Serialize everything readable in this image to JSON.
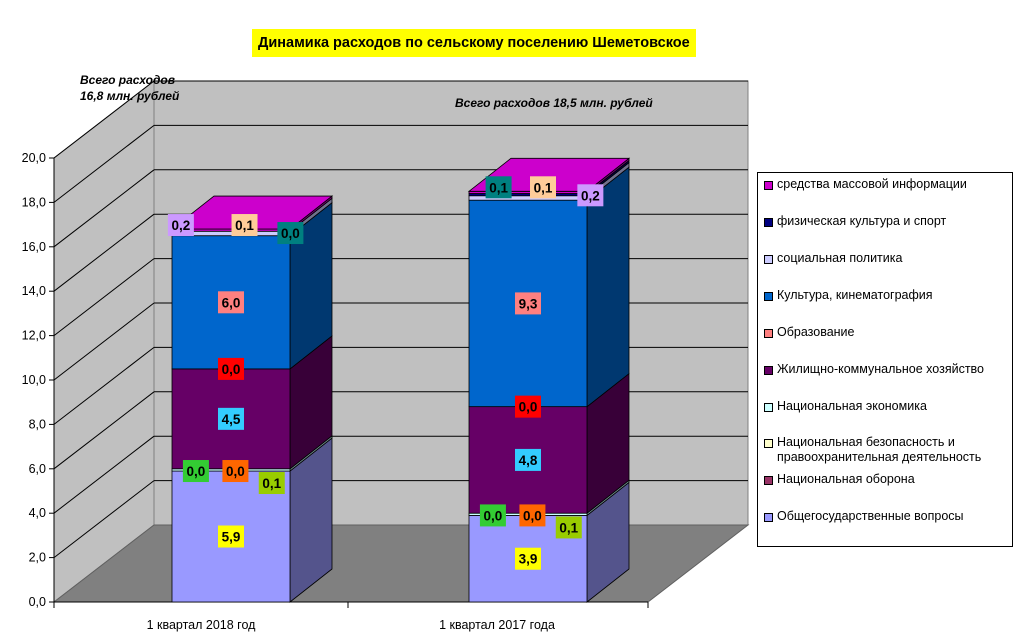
{
  "chart_data": {
    "type": "bar",
    "stacked": true,
    "three_d": true,
    "title": "Динамика расходов по сельскому поселению Шеметовское",
    "notes": [
      "Всего расходов 16,8 млн. рублей",
      "Всего расходов 18,5 млн. рублей"
    ],
    "categories": [
      "1 квартал 2018 год",
      "1 квартал 2017 года"
    ],
    "y_ticks": [
      "0,0",
      "2,0",
      "4,0",
      "6,0",
      "8,0",
      "10,0",
      "12,0",
      "14,0",
      "16,0",
      "18,0",
      "20,0"
    ],
    "ylim": [
      0,
      20
    ],
    "grid": true,
    "legend_position": "right",
    "series": [
      {
        "name": "Общегосударственные вопросы",
        "color": "#9999ff",
        "values": [
          5.9,
          3.9
        ],
        "labels": [
          "5,9",
          "3,9"
        ],
        "label_bg": "#ffff00"
      },
      {
        "name": "Национальная оборона",
        "color": "#993366",
        "values": [
          0.0,
          0.0
        ],
        "labels": [
          "0,0",
          "0,0"
        ],
        "label_bg": "#33cc33"
      },
      {
        "name": "Национальная безопасность и правоохранительная деятельность",
        "color": "#ffffcc",
        "values": [
          0.0,
          0.0
        ],
        "labels": [
          "0,0",
          "0,0"
        ],
        "label_bg": "#ff6600"
      },
      {
        "name": "Национальная экономика",
        "color": "#ccffff",
        "values": [
          0.1,
          0.1
        ],
        "labels": [
          "0,1",
          "0,1"
        ],
        "label_bg": "#99cc00"
      },
      {
        "name": "Жилищно-коммунальное хозяйство",
        "color": "#660066",
        "values": [
          4.5,
          4.8
        ],
        "labels": [
          "4,5",
          "4,8"
        ],
        "label_bg": "#33ccff"
      },
      {
        "name": "Образование",
        "color": "#ff8080",
        "values": [
          0.0,
          0.0
        ],
        "labels": [
          "0,0",
          "0,0"
        ],
        "label_bg": "#ff0000"
      },
      {
        "name": "Культура, кинематография",
        "color": "#0066cc",
        "values": [
          6.0,
          9.3
        ],
        "labels": [
          "6,0",
          "9,3"
        ],
        "label_bg": "#ff8080"
      },
      {
        "name": "социальная политика",
        "color": "#ccccff",
        "values": [
          0.2,
          0.2
        ],
        "labels": [
          "0,2",
          "0,2"
        ],
        "label_bg": "#cc99ff"
      },
      {
        "name": "физическая культура и спорт",
        "color": "#000080",
        "values": [
          0.0,
          0.1
        ],
        "labels": [
          "0,0",
          "0,1"
        ],
        "label_bg": "#008080"
      },
      {
        "name": "средства массовой информации",
        "color": "#cc00cc",
        "values": [
          0.1,
          0.1
        ],
        "labels": [
          "0,1",
          "0,1"
        ],
        "label_bg": "#ffcc99"
      }
    ]
  }
}
